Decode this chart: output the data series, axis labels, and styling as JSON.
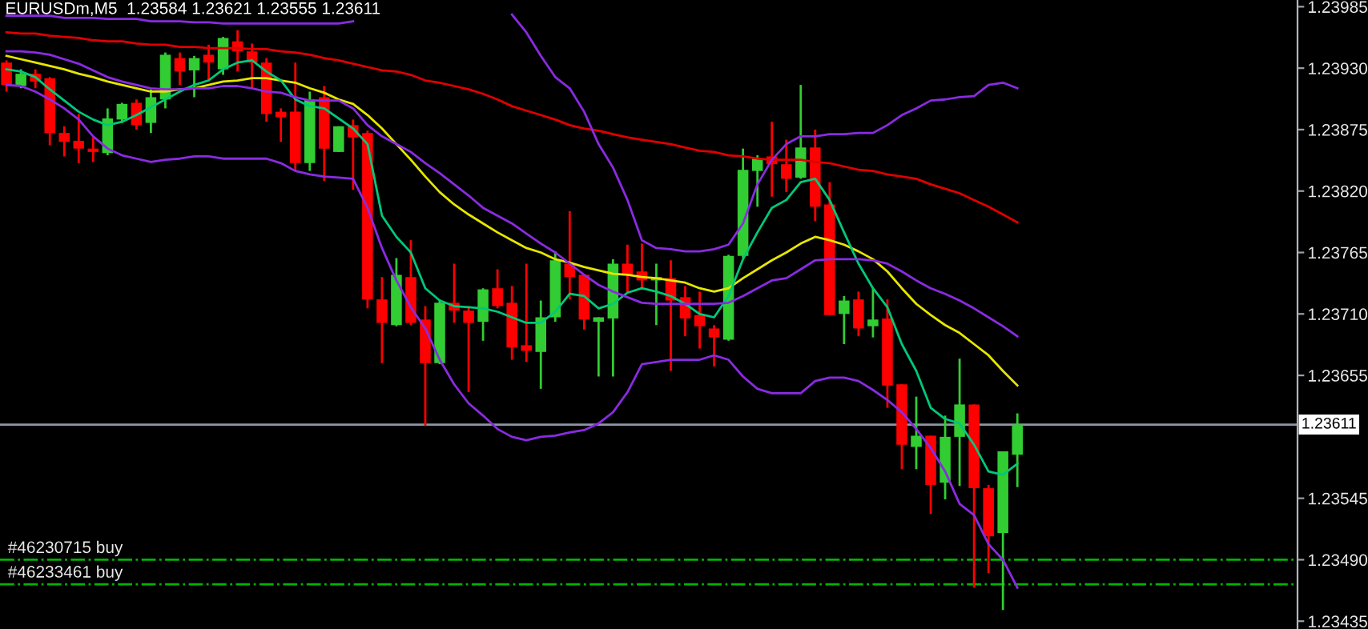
{
  "chart_data": {
    "type": "candlestick",
    "title": "EURUSDm,M5  1.23584 1.23621 1.23555 1.23611",
    "categories": [
      null,
      null,
      null,
      null,
      null,
      null,
      null,
      null,
      null,
      null,
      null,
      null,
      null,
      null,
      null,
      null,
      null,
      null,
      null,
      null,
      null,
      null,
      null,
      null,
      null,
      null,
      null,
      null,
      null,
      null,
      null,
      null,
      null,
      null,
      null,
      null,
      null,
      null,
      null,
      null,
      null,
      null,
      null,
      null,
      null,
      null,
      null,
      null,
      null,
      null,
      null,
      null,
      null,
      null,
      null,
      null,
      null,
      null,
      null,
      null,
      null,
      null,
      null,
      null,
      null,
      null,
      null,
      null,
      null,
      null,
      null
    ],
    "ohlc": [
      [
        1.23935,
        1.23937,
        1.23909,
        1.23915
      ],
      [
        1.23914,
        1.23929,
        1.23912,
        1.23925
      ],
      [
        1.23925,
        1.23929,
        1.23912,
        1.23918
      ],
      [
        1.23921,
        1.23922,
        1.23861,
        1.23872
      ],
      [
        1.23872,
        1.23878,
        1.23851,
        1.23864
      ],
      [
        1.23865,
        1.23889,
        1.23845,
        1.23858
      ],
      [
        1.23858,
        1.23868,
        1.23846,
        1.23855
      ],
      [
        1.23854,
        1.23894,
        1.23852,
        1.23885
      ],
      [
        1.23884,
        1.23899,
        1.23881,
        1.23898
      ],
      [
        1.23899,
        1.23902,
        1.23875,
        1.23879
      ],
      [
        1.23881,
        1.23911,
        1.23872,
        1.23904
      ],
      [
        1.23902,
        1.23944,
        1.23894,
        1.23942
      ],
      [
        1.23939,
        1.23944,
        1.23915,
        1.23927
      ],
      [
        1.23928,
        1.23941,
        1.23904,
        1.23939
      ],
      [
        1.23942,
        1.23951,
        1.23919,
        1.23935
      ],
      [
        1.23929,
        1.23958,
        1.23924,
        1.23957
      ],
      [
        1.23954,
        1.23964,
        1.23927,
        1.23945
      ],
      [
        1.23945,
        1.23952,
        1.23912,
        1.23935
      ],
      [
        1.23935,
        1.23939,
        1.23882,
        1.23889
      ],
      [
        1.23891,
        1.23894,
        1.23864,
        1.23886
      ],
      [
        1.23891,
        1.23935,
        1.23838,
        1.23845
      ],
      [
        1.23845,
        1.23909,
        1.23838,
        1.23902
      ],
      [
        1.23904,
        1.23914,
        1.23829,
        1.23858
      ],
      [
        1.23855,
        1.23878,
        1.23855,
        1.23878
      ],
      [
        1.23879,
        1.23884,
        1.23821,
        1.23868
      ],
      [
        1.23872,
        1.23874,
        1.23715,
        1.23723
      ],
      [
        1.23723,
        1.23743,
        1.23666,
        1.23702
      ],
      [
        1.237,
        1.2376,
        1.23699,
        1.23745
      ],
      [
        1.23743,
        1.23776,
        1.237,
        1.23702
      ],
      [
        1.23705,
        1.23717,
        1.2361,
        1.23666
      ],
      [
        1.23666,
        1.23723,
        1.23665,
        1.2372
      ],
      [
        1.2372,
        1.23755,
        1.23702,
        1.23713
      ],
      [
        1.23713,
        1.23717,
        1.2364,
        1.23702
      ],
      [
        1.23703,
        1.23733,
        1.23686,
        1.23732
      ],
      [
        1.23733,
        1.2375,
        1.23715,
        1.23717
      ],
      [
        1.2372,
        1.23735,
        1.23669,
        1.2368
      ],
      [
        1.23682,
        1.23755,
        1.23667,
        1.23677
      ],
      [
        1.23676,
        1.23722,
        1.23643,
        1.23707
      ],
      [
        1.23707,
        1.23766,
        1.23703,
        1.23758
      ],
      [
        1.23755,
        1.23802,
        1.23723,
        1.23743
      ],
      [
        1.23745,
        1.23745,
        1.23696,
        1.23705
      ],
      [
        1.23703,
        1.23707,
        1.23654,
        1.23707
      ],
      [
        1.23706,
        1.23759,
        1.23654,
        1.23755
      ],
      [
        1.23755,
        1.23772,
        1.23729,
        1.23745
      ],
      [
        1.23748,
        1.23773,
        1.23733,
        1.2374
      ],
      [
        1.2374,
        1.23755,
        1.237,
        1.23743
      ],
      [
        1.23742,
        1.23758,
        1.23659,
        1.23722
      ],
      [
        1.23725,
        1.23735,
        1.2369,
        1.23706
      ],
      [
        1.23709,
        1.2373,
        1.23679,
        1.23699
      ],
      [
        1.23697,
        1.237,
        1.23663,
        1.23689
      ],
      [
        1.23687,
        1.23763,
        1.23686,
        1.23762
      ],
      [
        1.23762,
        1.23858,
        1.2376,
        1.23839
      ],
      [
        1.23838,
        1.23852,
        1.23806,
        1.23849
      ],
      [
        1.23851,
        1.23882,
        1.23815,
        1.23844
      ],
      [
        1.23844,
        1.23866,
        1.23819,
        1.23831
      ],
      [
        1.23832,
        1.23915,
        1.23831,
        1.23859
      ],
      [
        1.23859,
        1.23875,
        1.23793,
        1.23806
      ],
      [
        1.23808,
        1.23828,
        1.23709,
        1.23709
      ],
      [
        1.2371,
        1.23726,
        1.23683,
        1.23722
      ],
      [
        1.23723,
        1.2373,
        1.2369,
        1.23697
      ],
      [
        1.23699,
        1.23733,
        1.23689,
        1.23705
      ],
      [
        1.23706,
        1.23723,
        1.23626,
        1.23646
      ],
      [
        1.23647,
        1.23647,
        1.23571,
        1.23593
      ],
      [
        1.23591,
        1.23636,
        1.23571,
        1.23601
      ],
      [
        1.23601,
        1.23601,
        1.23531,
        1.23557
      ],
      [
        1.23559,
        1.23619,
        1.23544,
        1.236
      ],
      [
        1.236,
        1.2367,
        1.23556,
        1.23629
      ],
      [
        1.23629,
        1.23629,
        1.23465,
        1.23554
      ],
      [
        1.23554,
        1.23557,
        1.23478,
        1.23511
      ],
      [
        1.23514,
        1.23587,
        1.23445,
        1.23587
      ],
      [
        1.23584,
        1.23621,
        1.23555,
        1.23611
      ]
    ],
    "colors": [
      "#ff0000",
      "#32cd32",
      "#ff0000",
      "#ff0000",
      "#ff0000",
      "#ff0000",
      "#ff0000",
      "#32cd32",
      "#32cd32",
      "#ff0000",
      "#32cd32",
      "#32cd32",
      "#ff0000",
      "#32cd32",
      "#ff0000",
      "#32cd32",
      "#ff0000",
      "#ff0000",
      "#ff0000",
      "#ff0000",
      "#ff0000",
      "#32cd32",
      "#ff0000",
      "#32cd32",
      "#ff0000",
      "#ff0000",
      "#ff0000",
      "#32cd32",
      "#ff0000",
      "#ff0000",
      "#32cd32",
      "#ff0000",
      "#ff0000",
      "#32cd32",
      "#ff0000",
      "#ff0000",
      "#ff0000",
      "#32cd32",
      "#32cd32",
      "#ff0000",
      "#ff0000",
      "#32cd32",
      "#32cd32",
      "#ff0000",
      "#ff0000",
      "#32cd32",
      "#ff0000",
      "#ff0000",
      "#ff0000",
      "#ff0000",
      "#32cd32",
      "#32cd32",
      "#32cd32",
      "#ff0000",
      "#ff0000",
      "#32cd32",
      "#ff0000",
      "#ff0000",
      "#32cd32",
      "#ff0000",
      "#32cd32",
      "#ff0000",
      "#ff0000",
      "#32cd32",
      "#ff0000",
      "#32cd32",
      "#32cd32",
      "#ff0000",
      "#ff0000",
      "#32cd32",
      "#32cd32"
    ],
    "series": [
      {
        "type": "line",
        "color": "#e00000",
        "values": [
          1.23962,
          1.23961,
          1.23961,
          1.23959,
          1.23958,
          1.23957,
          1.23955,
          1.23954,
          1.23954,
          1.23952,
          1.23951,
          1.23951,
          1.23949,
          1.23949,
          1.23948,
          1.23948,
          1.23948,
          1.23947,
          1.23947,
          1.23945,
          1.23944,
          1.23942,
          1.23939,
          1.23937,
          1.23934,
          1.23931,
          1.23928,
          1.23927,
          1.23924,
          1.23919,
          1.23917,
          1.23914,
          1.23911,
          1.23907,
          1.23902,
          1.23896,
          1.23892,
          1.23888,
          1.23884,
          1.23879,
          1.23876,
          1.23874,
          1.23871,
          1.23868,
          1.23866,
          1.23864,
          1.23862,
          1.23859,
          1.23856,
          1.23855,
          1.23852,
          1.23851,
          1.23849,
          1.23848,
          1.23848,
          1.23848,
          1.23846,
          1.23845,
          1.23842,
          1.23839,
          1.23838,
          1.23835,
          1.23833,
          1.23831,
          1.23826,
          1.23822,
          1.23818,
          1.23812,
          1.23806,
          1.23799,
          1.23792
        ]
      },
      {
        "type": "line",
        "color": "#e6e600",
        "values": [
          1.23941,
          1.23938,
          1.23935,
          1.23932,
          1.23929,
          1.23925,
          1.23922,
          1.23918,
          1.23915,
          1.23912,
          1.23909,
          1.23909,
          1.23911,
          1.23912,
          1.23915,
          1.23918,
          1.23919,
          1.23921,
          1.23921,
          1.23919,
          1.23917,
          1.23912,
          1.23908,
          1.23902,
          1.23898,
          1.23888,
          1.23876,
          1.23862,
          1.23848,
          1.23833,
          1.23819,
          1.23808,
          1.23799,
          1.23791,
          1.23783,
          1.23776,
          1.23769,
          1.23765,
          1.23759,
          1.23756,
          1.23752,
          1.23749,
          1.23746,
          1.23745,
          1.23743,
          1.23742,
          1.2374,
          1.23738,
          1.23733,
          1.2373,
          1.23733,
          1.23742,
          1.2375,
          1.23758,
          1.23765,
          1.23773,
          1.23779,
          1.23776,
          1.23772,
          1.23766,
          1.23759,
          1.23748,
          1.23733,
          1.23719,
          1.23709,
          1.237,
          1.23693,
          1.23683,
          1.23673,
          1.23659,
          1.23646
        ]
      },
      {
        "type": "line",
        "color": "#00c87a",
        "values": [
          1.23929,
          1.23927,
          1.23922,
          1.23911,
          1.23901,
          1.23891,
          1.23884,
          1.23879,
          1.23882,
          1.23888,
          1.23895,
          1.23902,
          1.23909,
          1.23915,
          1.23919,
          1.23929,
          1.23935,
          1.23937,
          1.23927,
          1.23919,
          1.23902,
          1.23896,
          1.23894,
          1.23885,
          1.23876,
          1.23862,
          1.23798,
          1.23779,
          1.23765,
          1.23733,
          1.23722,
          1.23717,
          1.23716,
          1.23715,
          1.23712,
          1.23707,
          1.23702,
          1.23702,
          1.23712,
          1.23728,
          1.23726,
          1.23715,
          1.23719,
          1.23729,
          1.23733,
          1.2373,
          1.23726,
          1.23719,
          1.2371,
          1.23707,
          1.23726,
          1.23759,
          1.23783,
          1.23805,
          1.23812,
          1.23828,
          1.23831,
          1.23812,
          1.23783,
          1.23755,
          1.23733,
          1.23716,
          1.23683,
          1.23659,
          1.23626,
          1.23616,
          1.23612,
          1.23593,
          1.23569,
          1.23566,
          1.23576
        ]
      },
      {
        "type": "line",
        "color": "#8a2be2",
        "values": [
          1.23977,
          1.23977,
          1.23977,
          1.23977,
          1.23975,
          1.23975,
          1.23975,
          1.23974,
          1.23974,
          1.23974,
          1.23972,
          1.23972,
          1.23972,
          1.23971,
          1.23971,
          1.2397,
          1.2397,
          1.2397,
          1.2397,
          1.2397,
          1.2397,
          1.2397,
          1.2397,
          1.2397,
          1.23972,
          null,
          null,
          null,
          null,
          null,
          null,
          null,
          null,
          null,
          null,
          1.23978,
          1.23962,
          1.23941,
          1.23922,
          1.23912,
          1.23891,
          1.23862,
          1.23841,
          1.23812,
          1.23776,
          1.23769,
          1.23768,
          1.23766,
          1.23766,
          1.23768,
          1.23772,
          1.23791,
          1.23826,
          1.23848,
          1.23862,
          1.23869,
          1.23869,
          1.23871,
          1.23871,
          1.23872,
          1.23872,
          1.23879,
          1.23888,
          1.23894,
          1.23901,
          1.23902,
          1.23904,
          1.23905,
          1.23915,
          1.23917,
          1.23912
        ]
      },
      {
        "type": "line",
        "color": "#8a2be2",
        "values": [
          1.23945,
          1.23945,
          1.23944,
          1.23942,
          1.23938,
          1.23934,
          1.23928,
          1.23922,
          1.23918,
          1.23915,
          1.23912,
          1.23911,
          1.23911,
          1.23912,
          1.23912,
          1.23914,
          1.23914,
          1.23912,
          1.23909,
          1.23908,
          1.23904,
          1.23901,
          1.23901,
          1.23901,
          1.23894,
          1.23879,
          1.23869,
          1.23862,
          1.23855,
          1.23845,
          1.23836,
          1.23826,
          1.23816,
          1.23805,
          1.23798,
          1.23791,
          1.23782,
          1.23773,
          1.23765,
          1.23755,
          1.23745,
          1.23736,
          1.2373,
          1.23725,
          1.2372,
          1.23719,
          1.23719,
          1.23719,
          1.23719,
          1.23719,
          1.2372,
          1.23726,
          1.23733,
          1.2374,
          1.23742,
          1.2375,
          1.23758,
          1.23759,
          1.23759,
          1.23759,
          1.23758,
          1.23755,
          1.23748,
          1.2374,
          1.23733,
          1.23728,
          1.23722,
          1.23715,
          1.23707,
          1.23699,
          1.2369
        ]
      },
      {
        "type": "line",
        "color": "#8a2be2",
        "values": [
          1.23915,
          1.23914,
          1.23909,
          1.23902,
          1.23894,
          1.23884,
          1.23869,
          1.23858,
          1.23852,
          1.23849,
          1.23846,
          1.23848,
          1.23849,
          1.23851,
          1.23851,
          1.23849,
          1.23849,
          1.23849,
          1.23849,
          1.23845,
          1.23838,
          1.23835,
          1.23833,
          1.23832,
          1.23831,
          1.23805,
          1.23769,
          1.2374,
          1.23716,
          1.23697,
          1.23669,
          1.23647,
          1.2363,
          1.23619,
          1.23607,
          1.236,
          1.23597,
          1.236,
          1.23601,
          1.23604,
          1.23606,
          1.23612,
          1.23622,
          1.2364,
          1.23665,
          1.23667,
          1.23669,
          1.23669,
          1.23669,
          1.23673,
          1.23669,
          1.23654,
          1.23643,
          1.23639,
          1.23639,
          1.23639,
          1.2365,
          1.23653,
          1.23653,
          1.2365,
          1.23642,
          1.23633,
          1.23622,
          1.23607,
          1.2359,
          1.23569,
          1.2354,
          1.2353,
          1.23504,
          1.2349,
          1.23465
        ]
      }
    ],
    "ylim": [
      1.23428,
      1.23991
    ],
    "yticks": [
      1.23985,
      {
        "value": 1.2393,
        "label": "1.23930"
      },
      1.23875,
      {
        "value": 1.2382,
        "label": "1.23820"
      },
      1.23765,
      {
        "value": 1.2371,
        "label": "1.23710"
      },
      1.23655,
      1.23545,
      {
        "value": 1.2349,
        "label": "1.23490"
      },
      1.23435
    ],
    "ref_lines": [
      {
        "axis": "y",
        "value": 1.23611,
        "label": "1.23611",
        "color": "#8c96a5",
        "line_style": "solid"
      },
      {
        "axis": "y",
        "value": 1.2349,
        "label": "#46230715 buy",
        "color": "#00b400",
        "line_style": "dashdot"
      },
      {
        "axis": "y",
        "value": 1.23468,
        "label": "#46233461 buy",
        "color": "#00b400",
        "line_style": "dashdot"
      }
    ],
    "tick_labels": "y",
    "grid": false
  }
}
